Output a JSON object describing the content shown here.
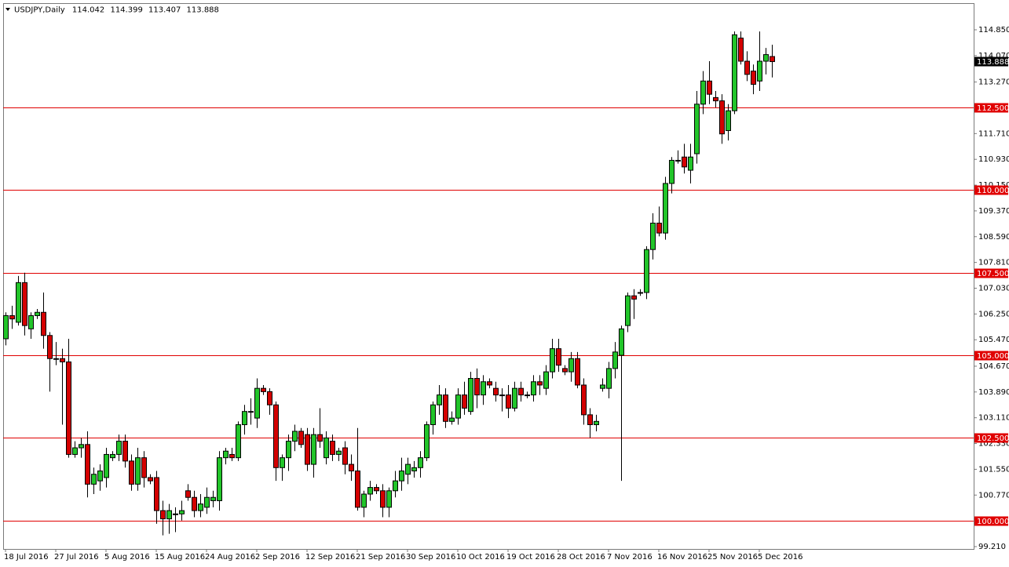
{
  "chart_data": {
    "type": "candlestick",
    "symbol": "USDJPY,Daily",
    "categories": [
      "18 Jul 2016",
      null,
      null,
      null,
      null,
      null,
      null,
      null,
      "27 Jul 2016",
      null,
      null,
      null,
      null,
      null,
      null,
      null,
      "5 Aug 2016",
      null,
      null,
      null,
      null,
      null,
      null,
      null,
      "15 Aug 2016",
      null,
      null,
      null,
      null,
      null,
      null,
      null,
      "24 Aug 2016",
      null,
      null,
      null,
      null,
      null,
      null,
      null,
      "2 Sep 2016",
      null,
      null,
      null,
      null,
      null,
      null,
      null,
      "12 Sep 2016",
      null,
      null,
      null,
      null,
      null,
      null,
      null,
      "21 Sep 2016",
      null,
      null,
      null,
      null,
      null,
      null,
      null,
      "30 Sep 2016",
      null,
      null,
      null,
      null,
      null,
      null,
      null,
      "10 Oct 2016",
      null,
      null,
      null,
      null,
      null,
      null,
      null,
      "19 Oct 2016",
      null,
      null,
      null,
      null,
      null,
      null,
      null,
      "28 Oct 2016",
      null,
      null,
      null,
      null,
      null,
      null,
      null,
      "7 Nov 2016",
      null,
      null,
      null,
      null,
      null,
      null,
      null,
      "16 Nov 2016",
      null,
      null,
      null,
      null,
      null,
      null,
      null,
      "25 Nov 2016",
      null,
      null,
      null,
      null,
      null,
      null,
      null,
      "5 Dec 2016",
      null,
      null
    ],
    "open": [
      105.5,
      106.2,
      106.0,
      107.2,
      105.8,
      106.2,
      106.3,
      105.6,
      104.9,
      104.9,
      104.8,
      102.0,
      102.2,
      102.3,
      101.1,
      101.2,
      101.3,
      101.9,
      102.0,
      102.4,
      101.8,
      101.1,
      101.9,
      101.3,
      101.3,
      100.3,
      100.05,
      100.2,
      100.2,
      100.9,
      100.7,
      100.3,
      100.4,
      100.6,
      100.6,
      101.9,
      102.0,
      101.9,
      102.9,
      103.3,
      103.1,
      104.0,
      103.9,
      103.5,
      101.6,
      101.9,
      102.4,
      102.7,
      102.6,
      101.7,
      102.6,
      101.9,
      102.4,
      102.0,
      102.2,
      101.7,
      101.5,
      100.4,
      100.8,
      101.0,
      100.9,
      100.4,
      100.9,
      101.2,
      101.4,
      101.5,
      101.6,
      101.9,
      102.9,
      103.5,
      103.8,
      103.0,
      103.1,
      103.8,
      103.3,
      104.3,
      103.8,
      104.2,
      104.0,
      103.8,
      103.8,
      103.4,
      104.0,
      103.8,
      103.8,
      104.2,
      104.0,
      104.5,
      105.2,
      104.6,
      104.5,
      104.9,
      104.1,
      103.2,
      102.9,
      104.0,
      104.0,
      104.6,
      105.0,
      105.9,
      106.8,
      106.9,
      106.9,
      108.2,
      109.0,
      108.7,
      110.2,
      110.9,
      111.0,
      110.6,
      111.1,
      112.6,
      113.3,
      112.8,
      112.7,
      111.8,
      112.4,
      114.6,
      113.9,
      113.6,
      113.3,
      113.9,
      114.042
    ],
    "high": [
      106.3,
      106.5,
      107.4,
      107.5,
      106.3,
      106.4,
      106.9,
      105.7,
      105.4,
      105.2,
      105.5,
      102.4,
      102.5,
      102.7,
      101.6,
      101.7,
      102.2,
      102.1,
      102.6,
      102.6,
      102.0,
      102.2,
      102.1,
      101.4,
      101.5,
      100.6,
      100.5,
      100.4,
      100.6,
      101.1,
      100.9,
      100.8,
      101.0,
      100.9,
      102.1,
      102.2,
      102.2,
      103.0,
      103.5,
      103.7,
      104.3,
      104.1,
      104.0,
      103.6,
      102.0,
      102.6,
      102.9,
      102.8,
      102.8,
      102.8,
      103.4,
      102.7,
      102.6,
      102.2,
      102.4,
      102.0,
      102.8,
      100.9,
      101.2,
      101.1,
      101.1,
      101.0,
      101.5,
      101.9,
      101.9,
      101.8,
      102.1,
      103.0,
      103.6,
      104.1,
      104.0,
      103.3,
      104.0,
      104.2,
      104.5,
      104.6,
      104.4,
      104.3,
      104.2,
      104.0,
      104.1,
      104.2,
      104.2,
      103.9,
      104.4,
      104.4,
      104.7,
      105.5,
      105.5,
      104.7,
      105.1,
      105.1,
      104.3,
      103.4,
      103.2,
      104.3,
      104.8,
      105.4,
      105.9,
      106.9,
      107.0,
      107.0,
      108.3,
      109.3,
      109.5,
      110.4,
      111.0,
      111.2,
      111.4,
      111.4,
      113.0,
      113.6,
      113.9,
      113.0,
      112.9,
      112.6,
      114.8,
      114.8,
      114.2,
      113.8,
      114.8,
      114.3,
      114.399
    ],
    "low": [
      105.3,
      105.8,
      105.9,
      105.6,
      105.5,
      106.1,
      105.2,
      103.9,
      104.7,
      102.9,
      101.9,
      101.9,
      101.9,
      100.7,
      100.8,
      100.9,
      101.0,
      101.8,
      101.8,
      101.6,
      100.9,
      100.9,
      101.0,
      101.1,
      99.9,
      99.55,
      99.6,
      99.65,
      100.0,
      100.6,
      100.1,
      100.1,
      100.2,
      100.4,
      100.3,
      101.7,
      101.8,
      101.8,
      102.6,
      102.9,
      102.8,
      103.8,
      103.2,
      101.2,
      101.2,
      101.5,
      102.1,
      102.2,
      101.5,
      101.3,
      102.2,
      101.7,
      101.8,
      101.8,
      101.4,
      101.2,
      100.3,
      100.1,
      100.6,
      100.8,
      100.1,
      100.1,
      100.7,
      100.9,
      101.1,
      101.3,
      101.3,
      101.8,
      102.6,
      103.2,
      102.8,
      102.9,
      102.9,
      103.2,
      103.2,
      103.4,
      103.5,
      104.0,
      103.6,
      103.3,
      103.1,
      103.3,
      103.6,
      103.7,
      103.6,
      103.8,
      103.8,
      104.3,
      104.5,
      104.4,
      104.2,
      104.0,
      102.9,
      102.5,
      102.7,
      103.9,
      103.7,
      104.3,
      101.2,
      105.7,
      106.1,
      106.8,
      106.7,
      107.9,
      108.6,
      108.5,
      109.9,
      110.8,
      110.5,
      110.2,
      110.8,
      112.3,
      112.6,
      112.5,
      111.4,
      111.5,
      112.3,
      113.8,
      113.3,
      112.9,
      113.0,
      113.5,
      113.407
    ],
    "close": [
      106.2,
      106.1,
      107.2,
      105.9,
      106.2,
      106.3,
      105.6,
      104.9,
      104.9,
      104.8,
      102.0,
      102.2,
      102.3,
      101.1,
      101.4,
      101.5,
      102.0,
      102.0,
      102.4,
      101.8,
      101.1,
      101.9,
      101.3,
      101.2,
      100.3,
      100.05,
      100.3,
      100.2,
      100.3,
      100.7,
      100.3,
      100.5,
      100.7,
      100.7,
      101.9,
      102.1,
      101.9,
      102.9,
      103.3,
      103.3,
      104.0,
      103.9,
      103.5,
      101.6,
      101.9,
      102.4,
      102.7,
      102.3,
      101.7,
      102.6,
      102.4,
      102.5,
      102.0,
      102.1,
      101.7,
      101.5,
      100.4,
      100.8,
      101.0,
      100.9,
      100.4,
      100.9,
      101.2,
      101.5,
      101.7,
      101.6,
      101.9,
      102.9,
      103.5,
      103.8,
      103.0,
      103.1,
      103.8,
      103.4,
      104.3,
      103.8,
      104.2,
      104.1,
      103.8,
      103.8,
      103.4,
      104.0,
      103.8,
      103.8,
      104.2,
      104.1,
      104.5,
      105.2,
      104.7,
      104.5,
      104.9,
      104.1,
      103.2,
      102.9,
      103.0,
      104.1,
      104.6,
      105.1,
      105.8,
      106.8,
      106.7,
      106.9,
      108.2,
      109.0,
      108.7,
      110.2,
      110.9,
      110.9,
      110.7,
      111.0,
      112.6,
      113.3,
      112.9,
      112.7,
      111.7,
      112.4,
      114.7,
      113.9,
      113.5,
      113.2,
      113.9,
      114.1,
      113.888
    ],
    "up_color": "#22c52a",
    "down_color": "#d40000",
    "level_color": "#e00000",
    "levels": [
      {
        "value": 112.5,
        "label": "112.500"
      },
      {
        "value": 110,
        "label": "110.000"
      },
      {
        "value": 107.5,
        "label": "107.500"
      },
      {
        "value": 105,
        "label": "105.000"
      },
      {
        "value": 102.5,
        "label": "102.500"
      },
      {
        "value": 100,
        "label": "100.000"
      }
    ],
    "ylim": [
      99.139,
      115.657
    ],
    "yticks": [
      {
        "value": 114.85,
        "label": "114.850"
      },
      {
        "value": 114.07,
        "label": "114.070"
      },
      {
        "value": 113.27,
        "label": "113.270"
      },
      {
        "value": 111.71,
        "label": "111.710"
      },
      {
        "value": 110.93,
        "label": "110.930"
      },
      {
        "value": 110.15,
        "label": "110.150"
      },
      {
        "value": 109.37,
        "label": "109.370"
      },
      {
        "value": 108.59,
        "label": "108.590"
      },
      {
        "value": 107.81,
        "label": "107.810"
      },
      {
        "value": 107.03,
        "label": "107.030"
      },
      {
        "value": 106.25,
        "label": "106.250"
      },
      {
        "value": 105.47,
        "label": "105.470"
      },
      {
        "value": 104.67,
        "label": "104.670"
      },
      {
        "value": 103.89,
        "label": "103.890"
      },
      {
        "value": 103.11,
        "label": "103.110"
      },
      {
        "value": 102.33,
        "label": "102.330"
      },
      {
        "value": 101.55,
        "label": "101.550"
      },
      {
        "value": 100.77,
        "label": "100.770"
      },
      {
        "value": 99.21,
        "label": "99.210"
      }
    ]
  }
}
